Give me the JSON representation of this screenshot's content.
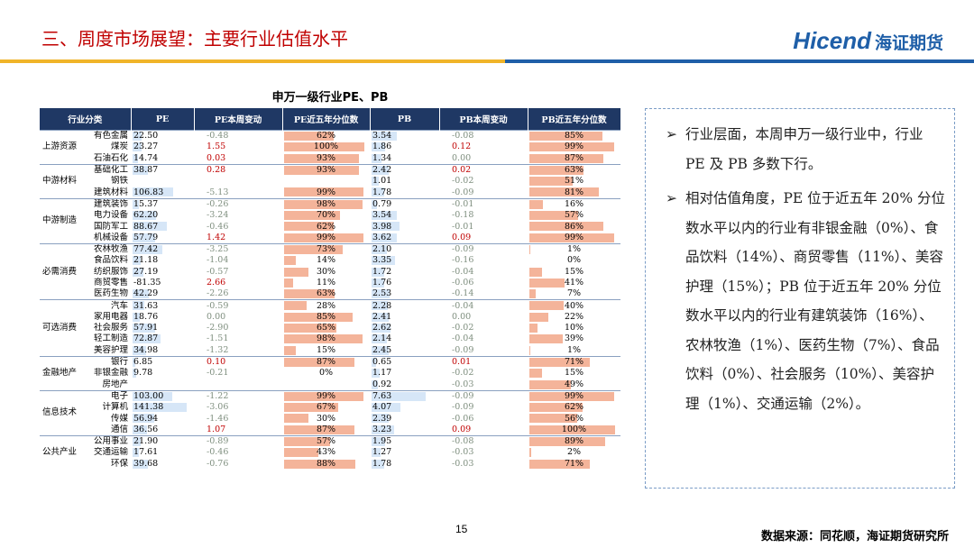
{
  "header": {
    "title": "三、周度市场展望：主要行业估值水平",
    "logo_latin": "Hicend",
    "logo_cn": "海证期货"
  },
  "table": {
    "title": "申万一级行业PE、PB",
    "headers": [
      "行业分类",
      "PE",
      "PE本周变动",
      "PE近五年分位数",
      "PB",
      "PB本周变动",
      "PB近五年分位数"
    ],
    "groups": [
      {
        "name": "上游资源",
        "rows": [
          [
            "有色金属",
            "22.50",
            "-0.48",
            "62%",
            "3.54",
            "-0.08",
            "85%"
          ],
          [
            "煤炭",
            "23.27",
            "1.55",
            "100%",
            "1.86",
            "0.12",
            "99%"
          ],
          [
            "石油石化",
            "14.74",
            "0.03",
            "93%",
            "1.34",
            "0.00",
            "87%"
          ]
        ]
      },
      {
        "name": "中游材料",
        "rows": [
          [
            "基础化工",
            "38.87",
            "0.28",
            "93%",
            "2.42",
            "0.02",
            "63%"
          ],
          [
            "钢铁",
            null,
            null,
            null,
            "1.01",
            "-0.02",
            "51%"
          ],
          [
            "建筑材料",
            "106.83",
            "-5.13",
            "99%",
            "1.78",
            "-0.09",
            "81%"
          ]
        ]
      },
      {
        "name": "中游制造",
        "rows": [
          [
            "建筑装饰",
            "15.37",
            "-0.26",
            "98%",
            "0.79",
            "-0.01",
            "16%"
          ],
          [
            "电力设备",
            "62.20",
            "-3.24",
            "70%",
            "3.54",
            "-0.18",
            "57%"
          ],
          [
            "国防军工",
            "88.67",
            "-0.46",
            "62%",
            "3.98",
            "-0.01",
            "86%"
          ],
          [
            "机械设备",
            "57.79",
            "1.42",
            "99%",
            "3.62",
            "0.09",
            "99%"
          ]
        ]
      },
      {
        "name": "必需消费",
        "rows": [
          [
            "农林牧渔",
            "77.42",
            "-3.25",
            "73%",
            "2.10",
            "-0.09",
            "1%"
          ],
          [
            "食品饮料",
            "21.18",
            "-1.04",
            "14%",
            "3.35",
            "-0.16",
            "0%"
          ],
          [
            "纺织服饰",
            "27.19",
            "-0.57",
            "30%",
            "1.72",
            "-0.04",
            "15%"
          ],
          [
            "商贸零售",
            "-81.35",
            "2.66",
            "11%",
            "1.76",
            "-0.06",
            "41%"
          ],
          [
            "医药生物",
            "42.29",
            "-2.26",
            "63%",
            "2.53",
            "-0.14",
            "7%"
          ]
        ]
      },
      {
        "name": "可选消费",
        "rows": [
          [
            "汽车",
            "31.63",
            "-0.59",
            "28%",
            "2.28",
            "-0.04",
            "40%"
          ],
          [
            "家用电器",
            "18.76",
            "0.00",
            "85%",
            "2.41",
            "0.00",
            "22%"
          ],
          [
            "社会服务",
            "57.91",
            "-2.90",
            "65%",
            "2.62",
            "-0.02",
            "10%"
          ],
          [
            "轻工制造",
            "72.87",
            "-1.51",
            "98%",
            "2.14",
            "-0.04",
            "39%"
          ],
          [
            "美容护理",
            "34.98",
            "-1.32",
            "15%",
            "2.45",
            "-0.09",
            "1%"
          ]
        ]
      },
      {
        "name": "金融地产",
        "rows": [
          [
            "银行",
            "6.85",
            "0.10",
            "87%",
            "0.65",
            "0.01",
            "71%"
          ],
          [
            "非银金融",
            "9.78",
            "-0.21",
            "0%",
            "1.17",
            "-0.02",
            "15%"
          ],
          [
            "房地产",
            null,
            null,
            null,
            "0.92",
            "-0.03",
            "49%"
          ]
        ]
      },
      {
        "name": "信息技术",
        "rows": [
          [
            "电子",
            "103.00",
            "-1.22",
            "99%",
            "7.63",
            "-0.09",
            "99%"
          ],
          [
            "计算机",
            "141.38",
            "-3.06",
            "67%",
            "4.07",
            "-0.09",
            "62%"
          ],
          [
            "传媒",
            "56.94",
            "-1.46",
            "30%",
            "2.39",
            "-0.06",
            "56%"
          ],
          [
            "通信",
            "36.56",
            "1.07",
            "87%",
            "3.23",
            "0.09",
            "100%"
          ]
        ]
      },
      {
        "name": "公共产业",
        "rows": [
          [
            "公用事业",
            "21.90",
            "-0.89",
            "57%",
            "1.95",
            "-0.08",
            "89%"
          ],
          [
            "交通运输",
            "17.61",
            "-0.46",
            "43%",
            "1.27",
            "-0.03",
            "2%"
          ],
          [
            "环保",
            "39.68",
            "-0.76",
            "88%",
            "1.78",
            "-0.03",
            "71%"
          ]
        ]
      }
    ]
  },
  "notes": [
    "行业层面，本周申万一级行业中，行业 PE 及 PB 多数下行。",
    "相对估值角度，PE 位于近五年 20% 分位数水平以内的行业有非银金融（0%）、食品饮料（14%）、商贸零售（11%）、美容护理（15%）；PB 位于近五年 20% 分位数水平以内的行业有建筑装饰（16%）、农林牧渔（1%）、医药生物（7%）、食品饮料（0%）、社会服务（10%）、美容护理（1%）、交通运输（2%）。"
  ],
  "footer": {
    "page": "15",
    "source": "数据来源：同花顺，海证期货研究所"
  }
}
